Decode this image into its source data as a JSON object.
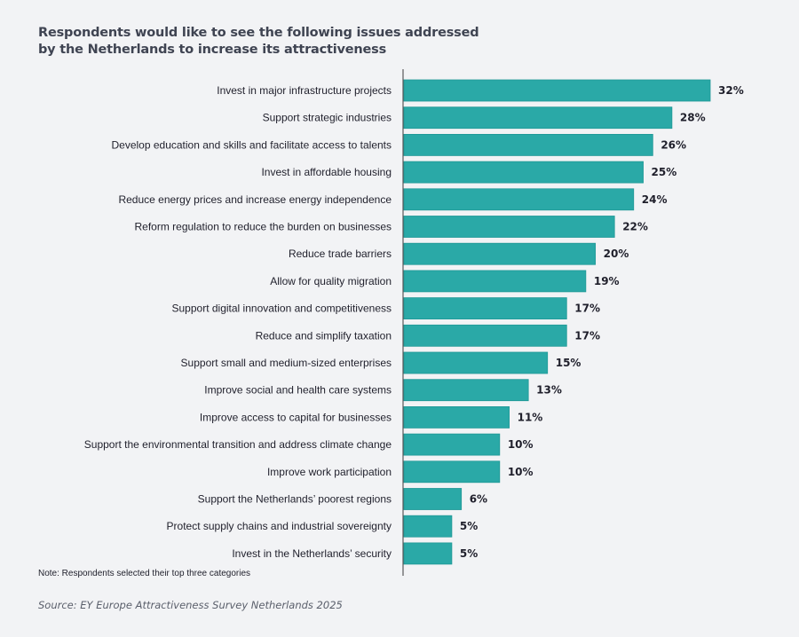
{
  "chart_data": {
    "type": "bar",
    "orientation": "horizontal",
    "title": "Respondents would like to see the following issues addressed by the Netherlands to increase its attractiveness",
    "xlabel": "",
    "ylabel": "",
    "unit": "%",
    "xlim": [
      0,
      32
    ],
    "grid": false,
    "legend": "none",
    "bar_color": "#2aa9a7",
    "bar_edge_color": "#1f9896",
    "categories": [
      "Invest in major infrastructure projects",
      "Support strategic industries",
      "Develop education and skills and facilitate access to talents",
      "Invest in affordable housing",
      "Reduce energy prices and increase energy independence",
      "Reform regulation to reduce the burden on businesses",
      "Reduce trade barriers",
      "Allow for quality migration",
      "Support digital innovation and competitiveness",
      "Reduce and simplify taxation",
      "Support small and medium-sized enterprises",
      "Improve social and health care systems",
      "Improve access to capital for businesses",
      "Support the environmental transition and address climate change",
      "Improve work participation",
      "Support the Netherlands’ poorest regions",
      "Protect supply chains and industrial sovereignty",
      "Invest in the Netherlands’ security"
    ],
    "values": [
      32,
      28,
      26,
      25,
      24,
      22,
      20,
      19,
      17,
      17,
      15,
      13,
      11,
      10,
      10,
      6,
      5,
      5
    ],
    "value_labels": [
      "32%",
      "28%",
      "26%",
      "25%",
      "24%",
      "22%",
      "20%",
      "19%",
      "17%",
      "17%",
      "15%",
      "13%",
      "11%",
      "10%",
      "10%",
      "6%",
      "5%",
      "5%"
    ],
    "note": "Note: Respondents selected their top three categories",
    "source": "Source: EY Europe Attractiveness Survey Netherlands 2025"
  }
}
